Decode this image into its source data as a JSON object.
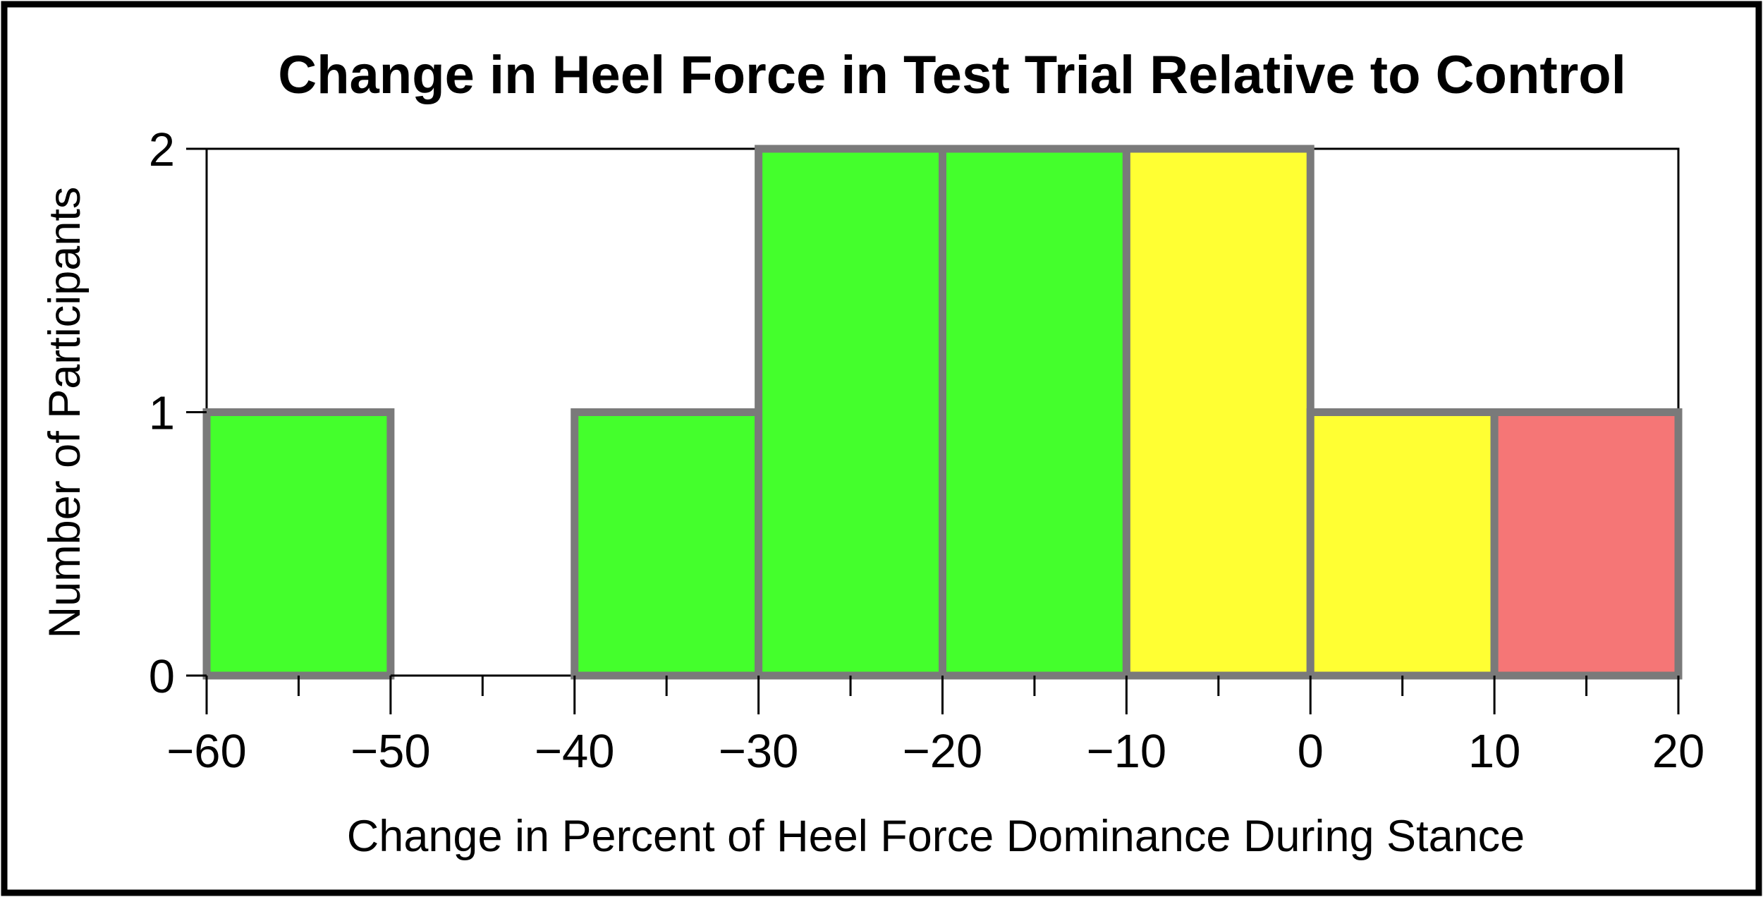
{
  "chart_data": {
    "type": "histogram",
    "title": "Change in Heel Force in Test Trial Relative to Control",
    "xlabel": "Change in Percent of Heel Force Dominance During Stance",
    "ylabel": "Number of Participants",
    "xlim": [
      -60,
      20
    ],
    "ylim": [
      0,
      2
    ],
    "bin_width": 10,
    "x_ticks": [
      -60,
      -50,
      -40,
      -30,
      -20,
      -10,
      0,
      10,
      20
    ],
    "x_tick_labels": [
      "−60",
      "−50",
      "−40",
      "−30",
      "−20",
      "−10",
      "0",
      "10",
      "20"
    ],
    "x_minor_ticks": [
      -55,
      -45,
      -35,
      -25,
      -15,
      -5,
      5,
      15
    ],
    "y_ticks": [
      0,
      1,
      2
    ],
    "y_tick_labels": [
      "0",
      "1",
      "2"
    ],
    "grid": false,
    "bars": [
      {
        "x0": -60,
        "x1": -50,
        "count": 1,
        "color": "#44ff2c"
      },
      {
        "x0": -50,
        "x1": -40,
        "count": 0,
        "color": "#44ff2c"
      },
      {
        "x0": -40,
        "x1": -30,
        "count": 1,
        "color": "#44ff2c"
      },
      {
        "x0": -30,
        "x1": -20,
        "count": 2,
        "color": "#44ff2c"
      },
      {
        "x0": -20,
        "x1": -10,
        "count": 2,
        "color": "#44ff2c"
      },
      {
        "x0": -10,
        "x1": 0,
        "count": 2,
        "color": "#ffff33"
      },
      {
        "x0": 0,
        "x1": 10,
        "count": 1,
        "color": "#ffff33"
      },
      {
        "x0": 10,
        "x1": 20,
        "count": 1,
        "color": "#f57676"
      }
    ],
    "bar_edge_color": "#7a7a7a"
  }
}
